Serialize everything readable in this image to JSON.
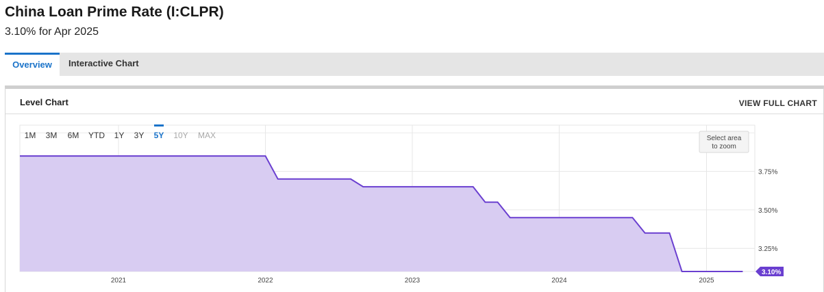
{
  "header": {
    "title": "China Loan Prime Rate (I:CLPR)",
    "subtitle": "3.10% for Apr 2025"
  },
  "tabs": [
    {
      "label": "Overview",
      "active": true
    },
    {
      "label": "Interactive Chart",
      "active": false
    }
  ],
  "card": {
    "title": "Level Chart",
    "view_full_label": "VIEW FULL CHART"
  },
  "range_buttons": [
    {
      "label": "1M",
      "state": "normal"
    },
    {
      "label": "3M",
      "state": "normal"
    },
    {
      "label": "6M",
      "state": "normal"
    },
    {
      "label": "YTD",
      "state": "normal"
    },
    {
      "label": "1Y",
      "state": "normal"
    },
    {
      "label": "3Y",
      "state": "normal"
    },
    {
      "label": "5Y",
      "state": "active"
    },
    {
      "label": "10Y",
      "state": "disabled"
    },
    {
      "label": "MAX",
      "state": "disabled"
    }
  ],
  "zoom_hint": [
    "Select area",
    "to zoom"
  ],
  "colors": {
    "line": "#6a3fd0",
    "fill": "#d8ccf2",
    "accent": "#1a73c9",
    "badge": "#6a3fd0"
  },
  "chart_data": {
    "type": "area",
    "title": "",
    "xlabel": "",
    "ylabel": "",
    "x_range": [
      "2020-05-01",
      "2025-05-01"
    ],
    "ylim": [
      3.1,
      4.05
    ],
    "x_ticks": [
      "2021",
      "2022",
      "2023",
      "2024",
      "2025"
    ],
    "y_ticks": [
      "3.25%",
      "3.50%",
      "3.75%"
    ],
    "y_tick_values": [
      3.25,
      3.5,
      3.75
    ],
    "last_value_label": "3.10%",
    "grid": true,
    "series": [
      {
        "x": [
          "2020-05-01",
          "2022-01-01",
          "2022-02-01",
          "2022-08-01",
          "2022-09-01",
          "2023-06-01",
          "2023-07-01",
          "2023-08-01",
          "2023-09-01",
          "2024-07-01",
          "2024-08-01",
          "2024-10-01",
          "2024-11-01",
          "2025-04-01"
        ],
        "y": [
          3.85,
          3.85,
          3.7,
          3.7,
          3.65,
          3.65,
          3.55,
          3.55,
          3.45,
          3.45,
          3.35,
          3.35,
          3.1,
          3.1
        ]
      }
    ]
  }
}
